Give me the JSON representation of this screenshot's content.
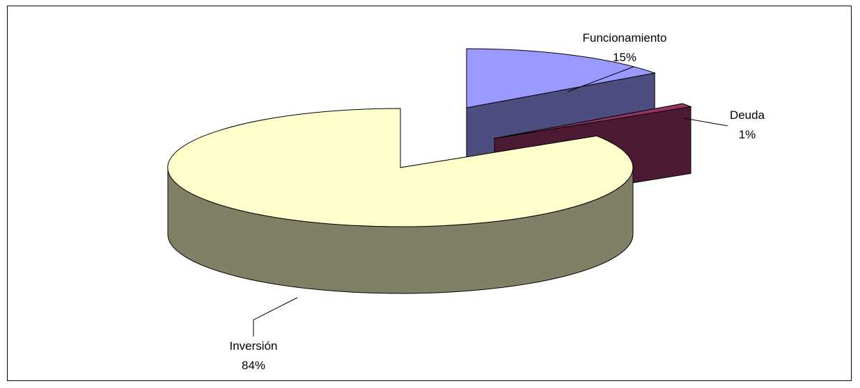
{
  "chart_data": {
    "type": "pie",
    "style": "3d-exploded",
    "title": "",
    "slices": [
      {
        "label": "Funcionamiento",
        "value": 15,
        "percent_label": "15%",
        "color": "#9999FF",
        "side_color": "#4D4D80"
      },
      {
        "label": "Deuda",
        "value": 1,
        "percent_label": "1%",
        "color": "#993366",
        "side_color": "#4D1A33"
      },
      {
        "label": "Inversión",
        "value": 84,
        "percent_label": "84%",
        "color": "#FFFFCC",
        "side_color": "#808066"
      }
    ],
    "legend": "none",
    "data_labels": "category-and-percent"
  }
}
